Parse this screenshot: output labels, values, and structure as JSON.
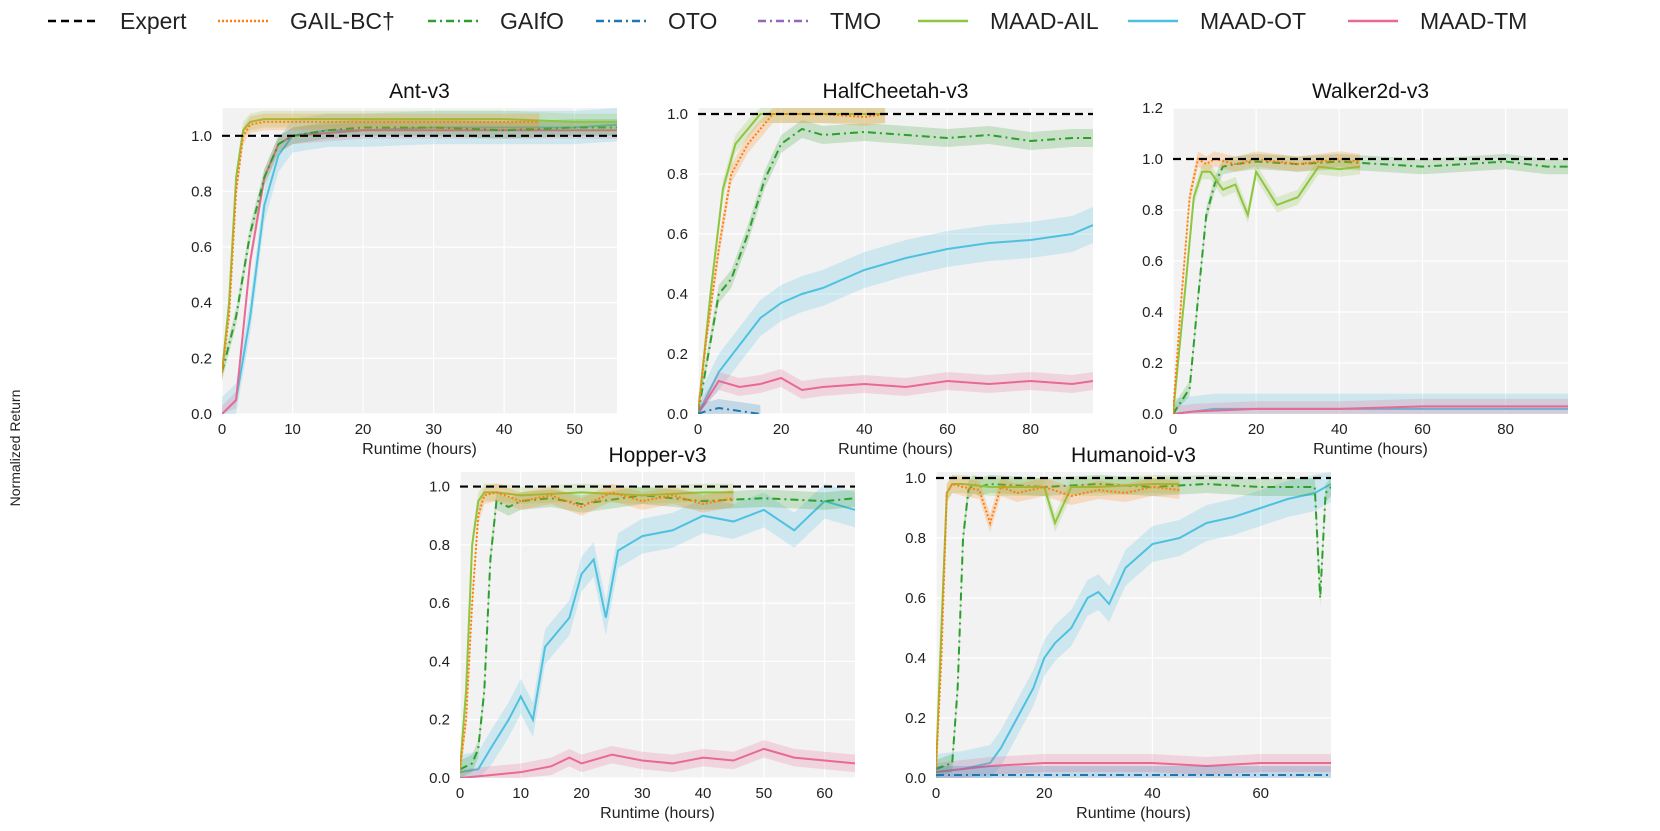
{
  "figure": {
    "ylabel": "Normalized Return",
    "legend": [
      {
        "name": "Expert",
        "color": "#000000",
        "dash": "8,5"
      },
      {
        "name": "GAIL-BC†",
        "color": "#ff7f0e",
        "dash": "2,2"
      },
      {
        "name": "GAIfO",
        "color": "#2ca02c",
        "dash": "8,4,2,4"
      },
      {
        "name": "OTO",
        "color": "#1f77b4",
        "dash": "8,4,2,4"
      },
      {
        "name": "TMO",
        "color": "#9467bd",
        "dash": "8,4,2,4"
      },
      {
        "name": "MAAD-AIL",
        "color": "#8dc63f",
        "dash": ""
      },
      {
        "name": "MAAD-OT",
        "color": "#4fc1e0",
        "dash": ""
      },
      {
        "name": "MAAD-TM",
        "color": "#e86a92",
        "dash": ""
      }
    ]
  },
  "chart_data": [
    {
      "type": "line",
      "title": "Ant-v3",
      "xlabel": "Runtime (hours)",
      "ylabel": "Normalized Return",
      "xlim": [
        0,
        56
      ],
      "ylim": [
        0,
        1.1
      ],
      "xticks": [
        0,
        10,
        20,
        30,
        40,
        50
      ],
      "yticks": [
        0,
        0.2,
        0.4,
        0.6,
        0.8,
        1.0
      ],
      "grid": true,
      "series": [
        {
          "name": "Expert",
          "x": [
            0,
            56
          ],
          "y": [
            1.0,
            1.0
          ]
        },
        {
          "name": "GAIL-BC†",
          "x": [
            0,
            1,
            2,
            3,
            4,
            6,
            10,
            20,
            30,
            40,
            45
          ],
          "y": [
            0.15,
            0.35,
            0.8,
            1.0,
            1.04,
            1.05,
            1.05,
            1.05,
            1.05,
            1.05,
            1.05
          ]
        },
        {
          "name": "GAIfO",
          "x": [
            0,
            2,
            4,
            6,
            8,
            10,
            15,
            20,
            30,
            40,
            50,
            56
          ],
          "y": [
            0.15,
            0.35,
            0.65,
            0.85,
            0.97,
            1.0,
            1.02,
            1.03,
            1.03,
            1.02,
            1.03,
            1.03
          ]
        },
        {
          "name": "MAAD-AIL",
          "x": [
            0,
            1,
            2,
            3,
            4,
            6,
            10,
            20,
            30,
            40,
            50,
            56
          ],
          "y": [
            0.15,
            0.4,
            0.85,
            1.02,
            1.05,
            1.06,
            1.06,
            1.06,
            1.06,
            1.06,
            1.05,
            1.05
          ]
        },
        {
          "name": "MAAD-OT",
          "x": [
            0,
            2,
            4,
            6,
            8,
            10,
            15,
            20,
            30,
            40,
            50,
            56
          ],
          "y": [
            0.0,
            0.05,
            0.35,
            0.75,
            0.93,
            1.0,
            1.02,
            1.02,
            1.03,
            1.03,
            1.03,
            1.04
          ]
        },
        {
          "name": "MAAD-TM",
          "x": [
            0,
            2,
            3,
            4,
            6,
            8,
            10,
            15,
            20,
            30,
            40,
            50,
            56
          ],
          "y": [
            0.0,
            0.05,
            0.3,
            0.55,
            0.85,
            0.97,
            1.0,
            1.01,
            1.02,
            1.02,
            1.02,
            1.02,
            1.02
          ]
        }
      ]
    },
    {
      "type": "line",
      "title": "HalfCheetah-v3",
      "xlabel": "Runtime (hours)",
      "ylabel": "Normalized Return",
      "xlim": [
        0,
        95
      ],
      "ylim": [
        0,
        1.02
      ],
      "xticks": [
        0,
        20,
        40,
        60,
        80
      ],
      "yticks": [
        0,
        0.2,
        0.4,
        0.6,
        0.8,
        1.0
      ],
      "grid": true,
      "series": [
        {
          "name": "Expert",
          "x": [
            0,
            95
          ],
          "y": [
            1.0,
            1.0
          ]
        },
        {
          "name": "GAIL-BC†",
          "x": [
            0,
            2,
            5,
            8,
            12,
            15,
            18,
            22,
            30,
            40,
            45
          ],
          "y": [
            0.0,
            0.25,
            0.55,
            0.8,
            0.9,
            0.95,
            1.0,
            1.0,
            1.0,
            0.99,
            1.0
          ]
        },
        {
          "name": "GAIfO",
          "x": [
            0,
            5,
            8,
            12,
            16,
            20,
            25,
            30,
            40,
            50,
            60,
            70,
            80,
            90,
            95
          ],
          "y": [
            0.0,
            0.4,
            0.45,
            0.6,
            0.78,
            0.9,
            0.95,
            0.93,
            0.94,
            0.93,
            0.92,
            0.93,
            0.91,
            0.92,
            0.92
          ]
        },
        {
          "name": "OTO",
          "x": [
            0,
            2,
            5,
            10,
            15
          ],
          "y": [
            0.0,
            0.01,
            0.02,
            0.01,
            0.0
          ]
        },
        {
          "name": "MAAD-AIL",
          "x": [
            0,
            3,
            6,
            9,
            12,
            15,
            20,
            30,
            40,
            45
          ],
          "y": [
            0.0,
            0.4,
            0.75,
            0.9,
            0.95,
            1.0,
            1.0,
            1.0,
            1.0,
            1.0
          ]
        },
        {
          "name": "MAAD-OT",
          "x": [
            0,
            5,
            10,
            15,
            20,
            25,
            30,
            35,
            40,
            50,
            60,
            70,
            80,
            90,
            95
          ],
          "y": [
            0.0,
            0.14,
            0.23,
            0.32,
            0.37,
            0.4,
            0.42,
            0.45,
            0.48,
            0.52,
            0.55,
            0.57,
            0.58,
            0.6,
            0.63
          ]
        },
        {
          "name": "MAAD-TM",
          "x": [
            0,
            5,
            10,
            15,
            20,
            25,
            30,
            40,
            50,
            60,
            70,
            80,
            90,
            95
          ],
          "y": [
            0.0,
            0.11,
            0.09,
            0.1,
            0.12,
            0.08,
            0.09,
            0.1,
            0.09,
            0.11,
            0.1,
            0.11,
            0.1,
            0.11
          ]
        }
      ]
    },
    {
      "type": "line",
      "title": "Walker2d-v3",
      "xlabel": "Runtime (hours)",
      "ylabel": "Normalized Return",
      "xlim": [
        0,
        95
      ],
      "ylim": [
        0,
        1.2
      ],
      "xticks": [
        0,
        20,
        40,
        60,
        80
      ],
      "yticks": [
        0,
        0.2,
        0.4,
        0.6,
        0.8,
        1.0,
        1.2
      ],
      "grid": true,
      "series": [
        {
          "name": "Expert",
          "x": [
            0,
            95
          ],
          "y": [
            1.0,
            1.0
          ]
        },
        {
          "name": "GAIL-BC†",
          "x": [
            0,
            2,
            4,
            6,
            8,
            10,
            15,
            20,
            30,
            40,
            45
          ],
          "y": [
            0.0,
            0.45,
            0.85,
            1.0,
            0.98,
            1.0,
            0.98,
            1.0,
            0.98,
            1.0,
            0.99
          ]
        },
        {
          "name": "GAIfO",
          "x": [
            0,
            4,
            6,
            8,
            10,
            12,
            15,
            20,
            30,
            40,
            50,
            60,
            70,
            80,
            90,
            95
          ],
          "y": [
            0.0,
            0.1,
            0.45,
            0.78,
            0.9,
            0.97,
            0.98,
            0.99,
            0.98,
            0.99,
            0.98,
            0.97,
            0.98,
            0.99,
            0.97,
            0.97
          ]
        },
        {
          "name": "MAAD-AIL",
          "x": [
            0,
            3,
            5,
            7,
            9,
            12,
            15,
            18,
            20,
            25,
            30,
            35,
            40,
            45
          ],
          "y": [
            0.0,
            0.5,
            0.85,
            0.95,
            0.95,
            0.88,
            0.9,
            0.78,
            0.95,
            0.82,
            0.85,
            0.97,
            0.96,
            0.97
          ]
        },
        {
          "name": "MAAD-OT",
          "x": [
            0,
            5,
            10,
            20,
            40,
            60,
            80,
            95
          ],
          "y": [
            0.0,
            0.01,
            0.02,
            0.02,
            0.02,
            0.02,
            0.02,
            0.02
          ]
        },
        {
          "name": "MAAD-TM",
          "x": [
            0,
            5,
            20,
            40,
            60,
            80,
            95
          ],
          "y": [
            0.0,
            0.01,
            0.02,
            0.02,
            0.03,
            0.03,
            0.03
          ]
        }
      ]
    },
    {
      "type": "line",
      "title": "Hopper-v3",
      "xlabel": "Runtime (hours)",
      "ylabel": "Normalized Return",
      "xlim": [
        0,
        65
      ],
      "ylim": [
        0,
        1.05
      ],
      "xticks": [
        0,
        10,
        20,
        30,
        40,
        50,
        60
      ],
      "yticks": [
        0,
        0.2,
        0.4,
        0.6,
        0.8,
        1.0
      ],
      "grid": true,
      "series": [
        {
          "name": "Expert",
          "x": [
            0,
            65
          ],
          "y": [
            1.0,
            1.0
          ]
        },
        {
          "name": "GAIL-BC†",
          "x": [
            0,
            1,
            2,
            3,
            4,
            6,
            10,
            15,
            20,
            25,
            30,
            35,
            40,
            45
          ],
          "y": [
            0.03,
            0.2,
            0.6,
            0.9,
            0.97,
            0.98,
            0.95,
            0.97,
            0.93,
            0.98,
            0.95,
            0.97,
            0.94,
            0.96
          ]
        },
        {
          "name": "GAIfO",
          "x": [
            0,
            2,
            3,
            4,
            5,
            6,
            8,
            10,
            15,
            20,
            30,
            40,
            50,
            60,
            65
          ],
          "y": [
            0.03,
            0.05,
            0.1,
            0.3,
            0.75,
            0.95,
            0.93,
            0.95,
            0.96,
            0.94,
            0.97,
            0.95,
            0.96,
            0.95,
            0.96
          ]
        },
        {
          "name": "MAAD-AIL",
          "x": [
            0,
            1,
            2,
            3,
            4,
            6,
            10,
            20,
            30,
            40,
            45
          ],
          "y": [
            0.03,
            0.3,
            0.8,
            0.95,
            0.98,
            0.98,
            0.97,
            0.98,
            0.97,
            0.98,
            0.98
          ]
        },
        {
          "name": "MAAD-OT",
          "x": [
            0,
            3,
            5,
            8,
            10,
            12,
            14,
            16,
            18,
            20,
            22,
            24,
            26,
            30,
            35,
            40,
            45,
            50,
            55,
            60,
            65
          ],
          "y": [
            0.02,
            0.03,
            0.1,
            0.2,
            0.28,
            0.2,
            0.45,
            0.5,
            0.55,
            0.7,
            0.75,
            0.55,
            0.78,
            0.83,
            0.85,
            0.9,
            0.88,
            0.92,
            0.85,
            0.95,
            0.92
          ]
        },
        {
          "name": "MAAD-TM",
          "x": [
            0,
            5,
            10,
            15,
            18,
            20,
            25,
            30,
            35,
            40,
            45,
            50,
            55,
            60,
            65
          ],
          "y": [
            0.0,
            0.01,
            0.02,
            0.04,
            0.07,
            0.05,
            0.08,
            0.06,
            0.05,
            0.07,
            0.06,
            0.1,
            0.07,
            0.06,
            0.05
          ]
        }
      ]
    },
    {
      "type": "line",
      "title": "Humanoid-v3",
      "xlabel": "Runtime (hours)",
      "ylabel": "Normalized Return",
      "xlim": [
        0,
        73
      ],
      "ylim": [
        0,
        1.02
      ],
      "xticks": [
        0,
        20,
        40,
        60
      ],
      "yticks": [
        0,
        0.2,
        0.4,
        0.6,
        0.8,
        1.0
      ],
      "grid": true,
      "series": [
        {
          "name": "Expert",
          "x": [
            0,
            73
          ],
          "y": [
            1.0,
            1.0
          ]
        },
        {
          "name": "GAIL-BC†",
          "x": [
            0,
            1,
            2,
            3,
            5,
            8,
            10,
            12,
            15,
            20,
            25,
            30,
            35,
            40,
            45
          ],
          "y": [
            0.03,
            0.4,
            0.95,
            0.98,
            0.97,
            0.96,
            0.85,
            0.97,
            0.95,
            0.97,
            0.94,
            0.96,
            0.95,
            0.97,
            0.96
          ]
        },
        {
          "name": "GAIfO",
          "x": [
            0,
            3,
            4,
            5,
            6,
            7,
            8,
            10,
            20,
            30,
            40,
            50,
            60,
            70,
            71,
            72,
            73
          ],
          "y": [
            0.03,
            0.05,
            0.3,
            0.8,
            0.96,
            0.98,
            0.97,
            0.98,
            0.97,
            0.98,
            0.97,
            0.98,
            0.97,
            0.97,
            0.6,
            0.95,
            0.97
          ]
        },
        {
          "name": "MAAD-AIL",
          "x": [
            0,
            1,
            2,
            3,
            5,
            10,
            20,
            22,
            25,
            30,
            40,
            45
          ],
          "y": [
            0.03,
            0.5,
            0.95,
            0.98,
            0.98,
            0.97,
            0.97,
            0.85,
            0.97,
            0.97,
            0.98,
            0.98
          ]
        },
        {
          "name": "MAAD-OT",
          "x": [
            0,
            5,
            10,
            12,
            15,
            18,
            20,
            22,
            25,
            28,
            30,
            32,
            35,
            40,
            45,
            50,
            55,
            60,
            65,
            70,
            73
          ],
          "y": [
            0.02,
            0.03,
            0.05,
            0.1,
            0.2,
            0.3,
            0.4,
            0.45,
            0.5,
            0.6,
            0.62,
            0.58,
            0.7,
            0.78,
            0.8,
            0.85,
            0.87,
            0.9,
            0.93,
            0.95,
            0.98
          ]
        },
        {
          "name": "MAAD-TM",
          "x": [
            0,
            5,
            10,
            20,
            30,
            40,
            50,
            60,
            70,
            73
          ],
          "y": [
            0.02,
            0.03,
            0.04,
            0.05,
            0.05,
            0.05,
            0.04,
            0.05,
            0.05,
            0.05
          ]
        },
        {
          "name": "OTO",
          "x": [
            0,
            20,
            40,
            60,
            73
          ],
          "y": [
            0.01,
            0.01,
            0.01,
            0.01,
            0.01
          ]
        }
      ]
    }
  ]
}
